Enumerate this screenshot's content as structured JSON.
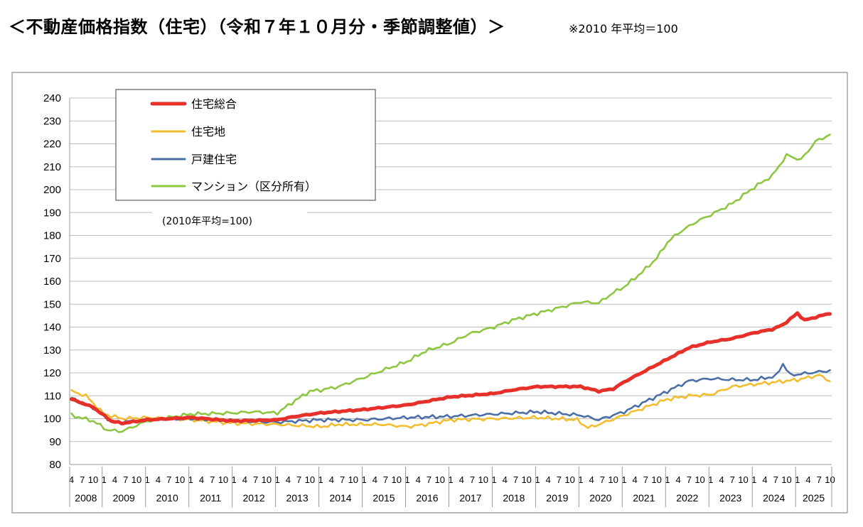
{
  "title": "＜不動産価格指数（住宅）（令和７年１０月分・季節調整値）＞",
  "note": "※2010 年平均＝100",
  "chart_data": {
    "type": "line",
    "base_note": "(2010年平均=100)",
    "ylim": [
      80,
      240
    ],
    "y_ticks": [
      80,
      90,
      100,
      110,
      120,
      130,
      140,
      150,
      160,
      170,
      180,
      190,
      200,
      210,
      220,
      230,
      240
    ],
    "grid": true,
    "legend_position": "top-left",
    "month_labels": [
      "1",
      "4",
      "7",
      "10"
    ],
    "years": [
      "2008",
      "2009",
      "2010",
      "2011",
      "2012",
      "2013",
      "2014",
      "2015",
      "2016",
      "2017",
      "2018",
      "2019",
      "2020",
      "2021",
      "2022",
      "2023",
      "2024",
      "2025"
    ],
    "x_start": "2008-04",
    "x_end": "2025-10",
    "series": [
      {
        "name": "住宅総合",
        "color": "#e8302a",
        "keypoints": [
          [
            "2008-04",
            108.5
          ],
          [
            "2008-10",
            105
          ],
          [
            "2009-03",
            99
          ],
          [
            "2009-06",
            98
          ],
          [
            "2010-01",
            99.5
          ],
          [
            "2011-01",
            100.5
          ],
          [
            "2012-01",
            99
          ],
          [
            "2013-01",
            99.5
          ],
          [
            "2013-06",
            101
          ],
          [
            "2014-01",
            102.5
          ],
          [
            "2015-01",
            104
          ],
          [
            "2016-01",
            106
          ],
          [
            "2016-06",
            107.5
          ],
          [
            "2017-01",
            109.5
          ],
          [
            "2018-01",
            111
          ],
          [
            "2018-06",
            112.5
          ],
          [
            "2019-01",
            114
          ],
          [
            "2020-01",
            114
          ],
          [
            "2020-06",
            112
          ],
          [
            "2020-10",
            113
          ],
          [
            "2021-01",
            116
          ],
          [
            "2021-07",
            121
          ],
          [
            "2022-01",
            126
          ],
          [
            "2022-07",
            131
          ],
          [
            "2023-01",
            133.5
          ],
          [
            "2023-07",
            135
          ],
          [
            "2024-01",
            137.5
          ],
          [
            "2024-06",
            139
          ],
          [
            "2024-09",
            141
          ],
          [
            "2025-01",
            146
          ],
          [
            "2025-03",
            143
          ],
          [
            "2025-10",
            146
          ]
        ]
      },
      {
        "name": "住宅地",
        "color": "#f2bd2e",
        "keypoints": [
          [
            "2008-04",
            112
          ],
          [
            "2008-08",
            110
          ],
          [
            "2009-01",
            102
          ],
          [
            "2009-06",
            100
          ],
          [
            "2010-01",
            100.5
          ],
          [
            "2011-01",
            99.5
          ],
          [
            "2012-01",
            98
          ],
          [
            "2013-01",
            97.5
          ],
          [
            "2014-01",
            96.5
          ],
          [
            "2014-06",
            97.5
          ],
          [
            "2015-06",
            97.5
          ],
          [
            "2016-01",
            96.5
          ],
          [
            "2016-06",
            97.5
          ],
          [
            "2017-01",
            99.5
          ],
          [
            "2018-01",
            100
          ],
          [
            "2019-01",
            100.5
          ],
          [
            "2019-12",
            99.5
          ],
          [
            "2020-03",
            96
          ],
          [
            "2020-06",
            97.5
          ],
          [
            "2021-01",
            101.5
          ],
          [
            "2021-07",
            105
          ],
          [
            "2022-01",
            108.5
          ],
          [
            "2022-07",
            110
          ],
          [
            "2023-01",
            110.5
          ],
          [
            "2023-07",
            114
          ],
          [
            "2024-01",
            115
          ],
          [
            "2024-07",
            116
          ],
          [
            "2025-01",
            117
          ],
          [
            "2025-07",
            119
          ],
          [
            "2025-10",
            116.5
          ]
        ]
      },
      {
        "name": "戸建住宅",
        "color": "#4a6fa8",
        "keypoints": [
          [
            "2008-04",
            109
          ],
          [
            "2008-10",
            105
          ],
          [
            "2009-03",
            99
          ],
          [
            "2009-06",
            98.5
          ],
          [
            "2010-01",
            99.5
          ],
          [
            "2011-01",
            100
          ],
          [
            "2012-01",
            99
          ],
          [
            "2013-01",
            98.5
          ],
          [
            "2014-01",
            99.5
          ],
          [
            "2015-01",
            99.5
          ],
          [
            "2016-01",
            100.5
          ],
          [
            "2017-01",
            101
          ],
          [
            "2018-01",
            102
          ],
          [
            "2019-01",
            103
          ],
          [
            "2020-01",
            101.5
          ],
          [
            "2020-06",
            99.5
          ],
          [
            "2021-01",
            103
          ],
          [
            "2021-07",
            107.5
          ],
          [
            "2022-01",
            112
          ],
          [
            "2022-07",
            116.5
          ],
          [
            "2023-01",
            117.5
          ],
          [
            "2023-07",
            117
          ],
          [
            "2024-01",
            117
          ],
          [
            "2024-07",
            118.5
          ],
          [
            "2024-09",
            124
          ],
          [
            "2024-11",
            119
          ],
          [
            "2025-10",
            121
          ]
        ]
      },
      {
        "name": "マンション（区分所有）",
        "color": "#8dc63f",
        "keypoints": [
          [
            "2008-04",
            101.5
          ],
          [
            "2008-10",
            99
          ],
          [
            "2009-02",
            95
          ],
          [
            "2009-06",
            94.5
          ],
          [
            "2010-01",
            99
          ],
          [
            "2011-01",
            102
          ],
          [
            "2012-01",
            102.5
          ],
          [
            "2012-06",
            103
          ],
          [
            "2013-01",
            102.5
          ],
          [
            "2013-06",
            108
          ],
          [
            "2013-10",
            112
          ],
          [
            "2014-01",
            112.5
          ],
          [
            "2014-06",
            114
          ],
          [
            "2015-01",
            118
          ],
          [
            "2015-06",
            121
          ],
          [
            "2016-01",
            125
          ],
          [
            "2016-06",
            129.5
          ],
          [
            "2017-01",
            133
          ],
          [
            "2017-06",
            137
          ],
          [
            "2018-01",
            140
          ],
          [
            "2018-06",
            143
          ],
          [
            "2019-01",
            146
          ],
          [
            "2019-06",
            148
          ],
          [
            "2020-01",
            151
          ],
          [
            "2020-06",
            150.5
          ],
          [
            "2020-10",
            155
          ],
          [
            "2021-01",
            157.5
          ],
          [
            "2021-06",
            164
          ],
          [
            "2021-10",
            170
          ],
          [
            "2022-01",
            177
          ],
          [
            "2022-04",
            181
          ],
          [
            "2022-09",
            186
          ],
          [
            "2023-01",
            189
          ],
          [
            "2023-07",
            194
          ],
          [
            "2024-01",
            201
          ],
          [
            "2024-06",
            206
          ],
          [
            "2024-10",
            215
          ],
          [
            "2025-02",
            213
          ],
          [
            "2025-06",
            221
          ],
          [
            "2025-10",
            224
          ]
        ]
      }
    ]
  }
}
